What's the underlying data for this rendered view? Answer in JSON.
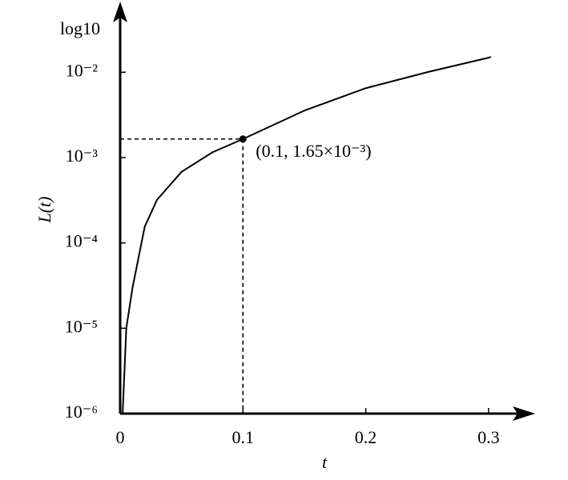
{
  "chart_data": {
    "type": "line",
    "log_y": true,
    "y_axis_top_label": "log10",
    "ylabel": "L(t)",
    "xlabel": "t",
    "x": [
      0.002,
      0.005,
      0.01,
      0.02,
      0.03,
      0.05,
      0.075,
      0.1,
      0.15,
      0.2,
      0.25,
      0.3,
      0.302
    ],
    "series": [
      {
        "name": "L(t)",
        "color": "#000000",
        "values": [
          1e-06,
          1e-05,
          2.95e-05,
          0.000155,
          0.00032,
          0.00068,
          0.00115,
          0.00165,
          0.00355,
          0.0065,
          0.01,
          0.0148,
          0.0151
        ]
      }
    ],
    "xlim": [
      0,
      0.336
    ],
    "ylim": [
      1e-06,
      0.063
    ],
    "xticks": [
      0,
      0.1,
      0.2,
      0.3
    ],
    "yticks": [
      {
        "value": 1e-06,
        "label": "10⁻⁶"
      },
      {
        "value": 1e-05,
        "label": "10⁻⁵"
      },
      {
        "value": 0.0001,
        "label": "10⁻⁴"
      },
      {
        "value": 0.001,
        "label": "10⁻³"
      },
      {
        "value": 0.01,
        "label": "10⁻²"
      }
    ],
    "highlight": {
      "x": 0.1,
      "y": 0.00165,
      "label": "(0.1, 1.65×10⁻³)"
    }
  }
}
